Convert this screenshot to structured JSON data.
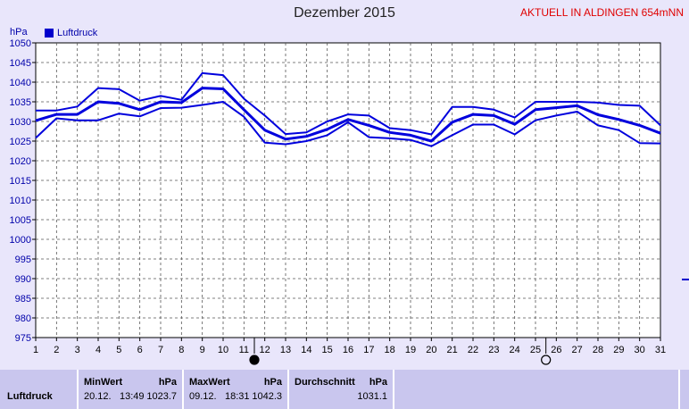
{
  "header": {
    "title": "Dezember 2015",
    "station": "AKTUELL IN ALDINGEN 654mNN"
  },
  "chart_data": {
    "type": "line",
    "ylabel": "hPa",
    "ylim": [
      975,
      1050
    ],
    "yticks": [
      "975",
      "980",
      "985",
      "990",
      "995",
      "1000",
      "1005",
      "1010",
      "1015",
      "1020",
      "1025",
      "1030",
      "1035",
      "1040",
      "1045",
      "1050"
    ],
    "xlim": [
      1,
      31
    ],
    "xticks": [
      "1",
      "2",
      "3",
      "4",
      "5",
      "6",
      "7",
      "8",
      "9",
      "10",
      "11",
      "12",
      "13",
      "14",
      "15",
      "16",
      "17",
      "18",
      "19",
      "20",
      "21",
      "22",
      "23",
      "24",
      "25",
      "26",
      "27",
      "28",
      "29",
      "30",
      "31"
    ],
    "grid": true,
    "legend": "top-left",
    "moon_markers": [
      {
        "x": 11.5,
        "phase": "new"
      },
      {
        "x": 25.5,
        "phase": "full"
      }
    ],
    "series": [
      {
        "name": "Luftdruck",
        "role": "max",
        "x": [
          1,
          2,
          3,
          4,
          5,
          6,
          7,
          8,
          9,
          10,
          11,
          12,
          13,
          14,
          15,
          16,
          17,
          18,
          19,
          20,
          21,
          22,
          23,
          24,
          25,
          26,
          27,
          28,
          29,
          30,
          31
        ],
        "values": [
          1032.8,
          1032.8,
          1033.8,
          1038.5,
          1038.2,
          1035.3,
          1036.5,
          1035.5,
          1042.3,
          1041.8,
          1035.8,
          1031.5,
          1026.8,
          1027.2,
          1030.0,
          1031.8,
          1031.5,
          1028.3,
          1027.8,
          1026.7,
          1033.7,
          1033.7,
          1033.0,
          1031.0,
          1035.0,
          1035.0,
          1035.0,
          1034.8,
          1034.2,
          1034.0,
          1029.0
        ]
      },
      {
        "name": "Luftdruck",
        "role": "avg",
        "x": [
          1,
          2,
          3,
          4,
          5,
          6,
          7,
          8,
          9,
          10,
          11,
          12,
          13,
          14,
          15,
          16,
          17,
          18,
          19,
          20,
          21,
          22,
          23,
          24,
          25,
          26,
          27,
          28,
          29,
          30,
          31
        ],
        "values": [
          1030.2,
          1031.8,
          1031.8,
          1035.0,
          1034.6,
          1033.0,
          1035.0,
          1034.8,
          1038.5,
          1038.3,
          1033.0,
          1027.8,
          1025.5,
          1026.2,
          1028.0,
          1030.5,
          1029.0,
          1027.2,
          1026.5,
          1025.0,
          1029.8,
          1031.8,
          1031.5,
          1029.3,
          1033.0,
          1033.5,
          1034.0,
          1031.7,
          1030.5,
          1029.0,
          1027.0
        ]
      },
      {
        "name": "Luftdruck",
        "role": "min",
        "x": [
          1,
          2,
          3,
          4,
          5,
          6,
          7,
          8,
          9,
          10,
          11,
          12,
          13,
          14,
          15,
          16,
          17,
          18,
          19,
          20,
          21,
          22,
          23,
          24,
          25,
          26,
          27,
          28,
          29,
          30,
          31
        ],
        "values": [
          1025.8,
          1030.8,
          1030.3,
          1030.3,
          1032.0,
          1031.3,
          1033.4,
          1033.5,
          1034.2,
          1035.0,
          1031.2,
          1024.6,
          1024.2,
          1025.0,
          1026.5,
          1029.8,
          1026.0,
          1025.7,
          1025.3,
          1023.7,
          1026.5,
          1029.2,
          1029.2,
          1026.7,
          1030.3,
          1031.5,
          1032.5,
          1029.0,
          1027.8,
          1024.5,
          1024.4
        ]
      }
    ]
  },
  "stats_table": {
    "row_label": "Luftdruck",
    "min": {
      "header": "MinWert",
      "unit": "hPa",
      "date": "20.12.",
      "time": "13:49",
      "value": "1023.7"
    },
    "max": {
      "header": "MaxWert",
      "unit": "hPa",
      "date": "09.12.",
      "time": "18:31",
      "value": "1042.3"
    },
    "avg": {
      "header": "Durchschnitt",
      "unit": "hPa",
      "value": "1031.1"
    }
  }
}
